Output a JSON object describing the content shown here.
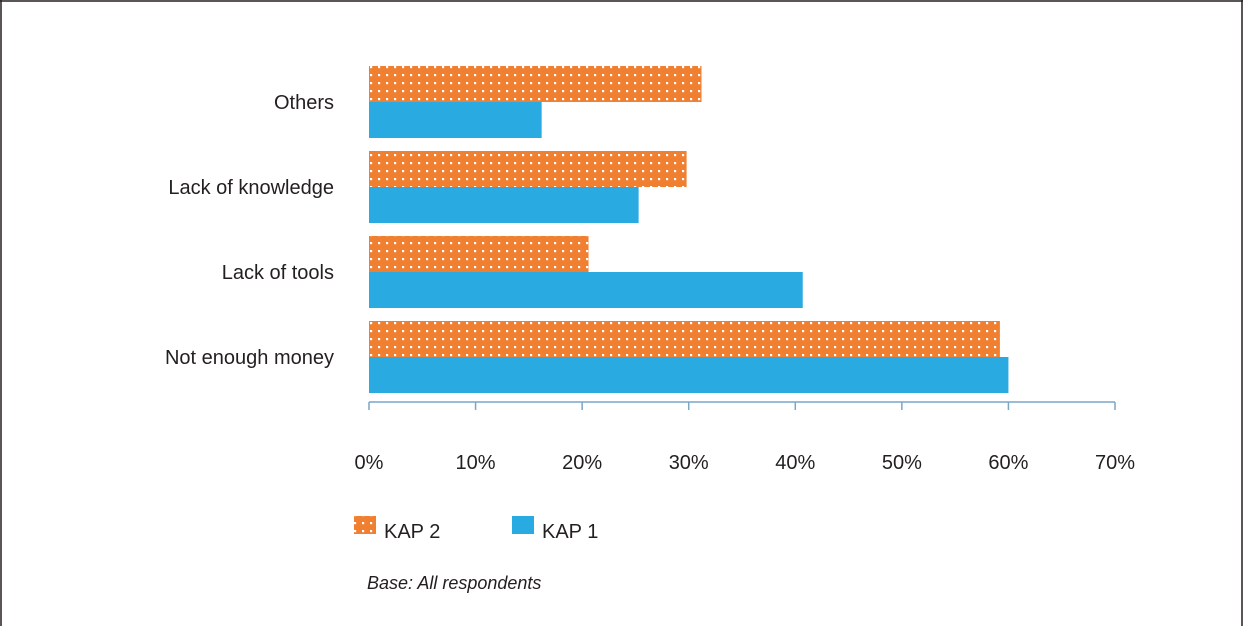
{
  "chart_data": {
    "type": "bar",
    "orientation": "horizontal",
    "categories": [
      "Others",
      "Lack of knowledge",
      "Lack of tools",
      "Not enough money"
    ],
    "series": [
      {
        "name": "KAP 2",
        "values": [
          31.2,
          29.8,
          20.6,
          59.2
        ],
        "color": "#f07f30",
        "pattern": "dotted"
      },
      {
        "name": "KAP 1",
        "values": [
          16.2,
          25.3,
          40.7,
          60.0
        ],
        "color": "#29abe2"
      }
    ],
    "xlim": [
      0,
      70
    ],
    "xticks": [
      "0%",
      "10%",
      "20%",
      "30%",
      "40%",
      "50%",
      "60%",
      "70%"
    ],
    "legend_position": "bottom-left",
    "grid": false,
    "note": "Base: All respondents"
  }
}
